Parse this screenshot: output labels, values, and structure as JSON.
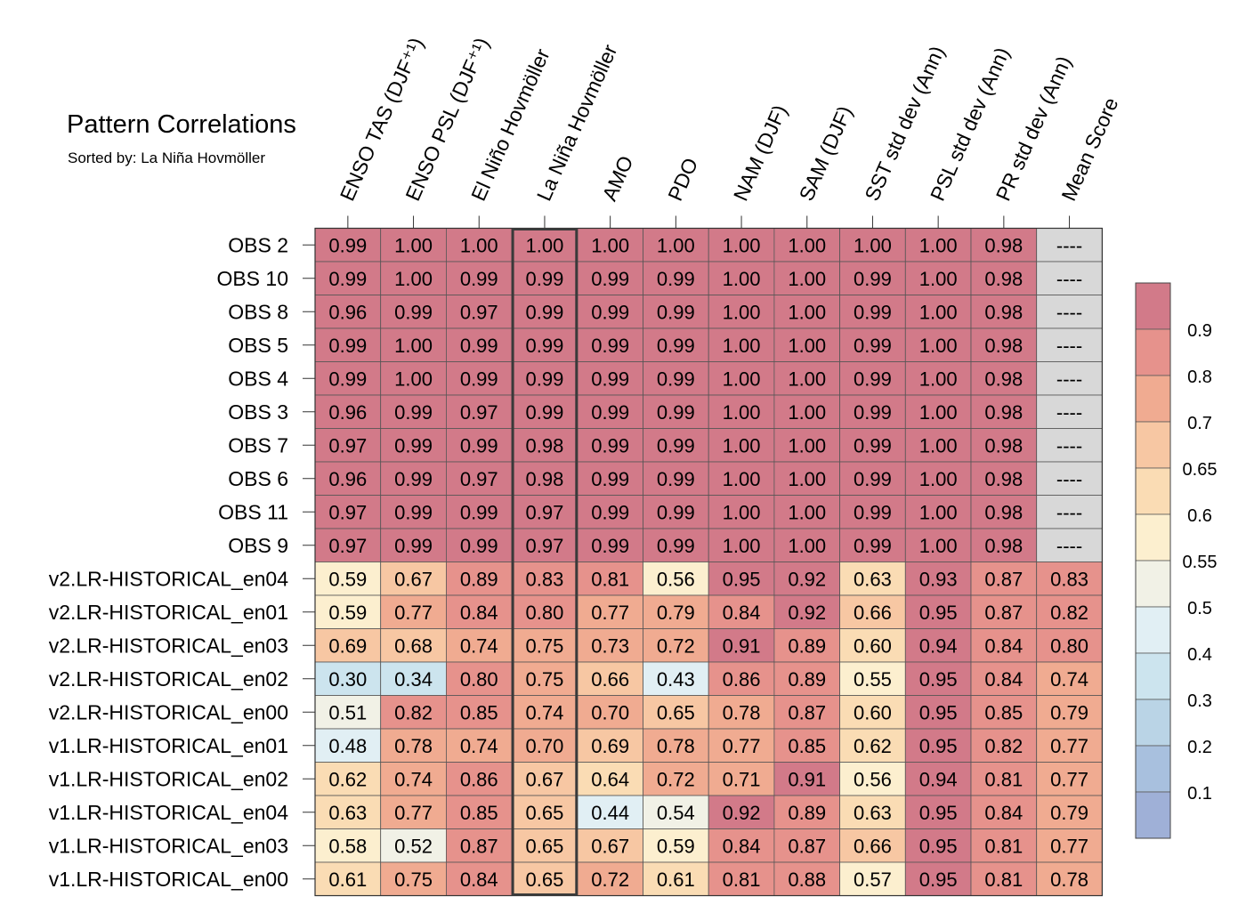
{
  "chart_data": {
    "type": "heatmap",
    "title": "Pattern Correlations",
    "subtitle": "Sorted by: La Niña Hovmöller",
    "columns": [
      "ENSO TAS (DJF⁺¹)",
      "ENSO PSL (DJF⁺¹)",
      "El Niño Hovmöller",
      "La Niña Hovmöller",
      "AMO",
      "PDO",
      "NAM (DJF)",
      "SAM (DJF)",
      "SST std dev (Ann)",
      "PSL std dev (Ann)",
      "PR std dev (Ann)",
      "Mean Score"
    ],
    "highlighted_column": "La Niña Hovmöller",
    "rows": [
      "OBS 2",
      "OBS 10",
      "OBS 8",
      "OBS 5",
      "OBS 4",
      "OBS 3",
      "OBS 7",
      "OBS 6",
      "OBS 11",
      "OBS 9",
      "v2.LR-HISTORICAL_en04",
      "v2.LR-HISTORICAL_en01",
      "v2.LR-HISTORICAL_en03",
      "v2.LR-HISTORICAL_en02",
      "v2.LR-HISTORICAL_en00",
      "v1.LR-HISTORICAL_en01",
      "v1.LR-HISTORICAL_en02",
      "v1.LR-HISTORICAL_en04",
      "v1.LR-HISTORICAL_en03",
      "v1.LR-HISTORICAL_en00"
    ],
    "values": [
      [
        "0.99",
        "1.00",
        "1.00",
        "1.00",
        "1.00",
        "1.00",
        "1.00",
        "1.00",
        "1.00",
        "1.00",
        "0.98",
        "----"
      ],
      [
        "0.99",
        "1.00",
        "0.99",
        "0.99",
        "0.99",
        "0.99",
        "1.00",
        "1.00",
        "0.99",
        "1.00",
        "0.98",
        "----"
      ],
      [
        "0.96",
        "0.99",
        "0.97",
        "0.99",
        "0.99",
        "0.99",
        "1.00",
        "1.00",
        "0.99",
        "1.00",
        "0.98",
        "----"
      ],
      [
        "0.99",
        "1.00",
        "0.99",
        "0.99",
        "0.99",
        "0.99",
        "1.00",
        "1.00",
        "0.99",
        "1.00",
        "0.98",
        "----"
      ],
      [
        "0.99",
        "1.00",
        "0.99",
        "0.99",
        "0.99",
        "0.99",
        "1.00",
        "1.00",
        "0.99",
        "1.00",
        "0.98",
        "----"
      ],
      [
        "0.96",
        "0.99",
        "0.97",
        "0.99",
        "0.99",
        "0.99",
        "1.00",
        "1.00",
        "0.99",
        "1.00",
        "0.98",
        "----"
      ],
      [
        "0.97",
        "0.99",
        "0.99",
        "0.98",
        "0.99",
        "0.99",
        "1.00",
        "1.00",
        "0.99",
        "1.00",
        "0.98",
        "----"
      ],
      [
        "0.96",
        "0.99",
        "0.97",
        "0.98",
        "0.99",
        "0.99",
        "1.00",
        "1.00",
        "0.99",
        "1.00",
        "0.98",
        "----"
      ],
      [
        "0.97",
        "0.99",
        "0.99",
        "0.97",
        "0.99",
        "0.99",
        "1.00",
        "1.00",
        "0.99",
        "1.00",
        "0.98",
        "----"
      ],
      [
        "0.97",
        "0.99",
        "0.99",
        "0.97",
        "0.99",
        "0.99",
        "1.00",
        "1.00",
        "0.99",
        "1.00",
        "0.98",
        "----"
      ],
      [
        "0.59",
        "0.67",
        "0.89",
        "0.83",
        "0.81",
        "0.56",
        "0.95",
        "0.92",
        "0.63",
        "0.93",
        "0.87",
        "0.83"
      ],
      [
        "0.59",
        "0.77",
        "0.84",
        "0.80",
        "0.77",
        "0.79",
        "0.84",
        "0.92",
        "0.66",
        "0.95",
        "0.87",
        "0.82"
      ],
      [
        "0.69",
        "0.68",
        "0.74",
        "0.75",
        "0.73",
        "0.72",
        "0.91",
        "0.89",
        "0.60",
        "0.94",
        "0.84",
        "0.80"
      ],
      [
        "0.30",
        "0.34",
        "0.80",
        "0.75",
        "0.66",
        "0.43",
        "0.86",
        "0.89",
        "0.55",
        "0.95",
        "0.84",
        "0.74"
      ],
      [
        "0.51",
        "0.82",
        "0.85",
        "0.74",
        "0.70",
        "0.65",
        "0.78",
        "0.87",
        "0.60",
        "0.95",
        "0.85",
        "0.79"
      ],
      [
        "0.48",
        "0.78",
        "0.74",
        "0.70",
        "0.69",
        "0.78",
        "0.77",
        "0.85",
        "0.62",
        "0.95",
        "0.82",
        "0.77"
      ],
      [
        "0.62",
        "0.74",
        "0.86",
        "0.67",
        "0.64",
        "0.72",
        "0.71",
        "0.91",
        "0.56",
        "0.94",
        "0.81",
        "0.77"
      ],
      [
        "0.63",
        "0.77",
        "0.85",
        "0.65",
        "0.44",
        "0.54",
        "0.92",
        "0.89",
        "0.63",
        "0.95",
        "0.84",
        "0.79"
      ],
      [
        "0.58",
        "0.52",
        "0.87",
        "0.65",
        "0.67",
        "0.59",
        "0.84",
        "0.87",
        "0.66",
        "0.95",
        "0.81",
        "0.77"
      ],
      [
        "0.61",
        "0.75",
        "0.84",
        "0.65",
        "0.72",
        "0.61",
        "0.81",
        "0.88",
        "0.57",
        "0.95",
        "0.81",
        "0.78"
      ]
    ],
    "missing_color": "#d8d8d8",
    "colorbar": {
      "labels": [
        "0.9",
        "0.8",
        "0.7",
        "0.65",
        "0.6",
        "0.55",
        "0.5",
        "0.4",
        "0.3",
        "0.2",
        "0.1"
      ],
      "bins": [
        {
          "lo": 0.9,
          "color": "#d27a89"
        },
        {
          "lo": 0.8,
          "color": "#e6928c"
        },
        {
          "lo": 0.7,
          "color": "#f0ab91"
        },
        {
          "lo": 0.65,
          "color": "#f7c7a3"
        },
        {
          "lo": 0.6,
          "color": "#fadcb4"
        },
        {
          "lo": 0.55,
          "color": "#fcefcf"
        },
        {
          "lo": 0.5,
          "color": "#f1f1e6"
        },
        {
          "lo": 0.4,
          "color": "#e1eff4"
        },
        {
          "lo": 0.3,
          "color": "#cce4ee"
        },
        {
          "lo": 0.2,
          "color": "#bad4e6"
        },
        {
          "lo": 0.1,
          "color": "#a8c0de"
        },
        {
          "lo": 0.0,
          "color": "#9fb0d7"
        }
      ]
    }
  }
}
